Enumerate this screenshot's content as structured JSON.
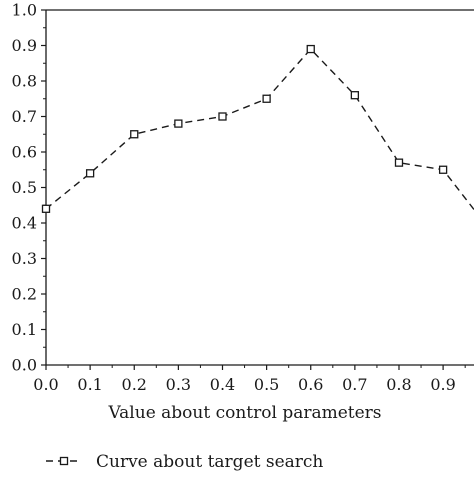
{
  "chart_data": {
    "type": "line",
    "xlabel": "Value about control parameters",
    "ylabel": "",
    "xlim": [
      0.0,
      0.97
    ],
    "ylim": [
      0.0,
      1.0
    ],
    "x_ticks": [
      "0.0",
      "0.1",
      "0.2",
      "0.3",
      "0.4",
      "0.5",
      "0.6",
      "0.7",
      "0.8",
      "0.9",
      "0.9"
    ],
    "y_ticks": [
      "0.0",
      "0.1",
      "0.2",
      "0.3",
      "0.4",
      "0.5",
      "0.6",
      "0.7",
      "0.8",
      "0.9",
      "1.0"
    ],
    "grid": false,
    "legend_position": "bottom-left",
    "series": [
      {
        "name": "Curve about target search",
        "line_style": "dashed",
        "marker": "open-square",
        "color": "#1a1a1a",
        "x": [
          0.0,
          0.1,
          0.2,
          0.3,
          0.4,
          0.5,
          0.6,
          0.7,
          0.8,
          0.9,
          1.0
        ],
        "y": [
          0.44,
          0.54,
          0.65,
          0.68,
          0.7,
          0.75,
          0.89,
          0.76,
          0.57,
          0.55,
          0.39
        ]
      }
    ]
  }
}
